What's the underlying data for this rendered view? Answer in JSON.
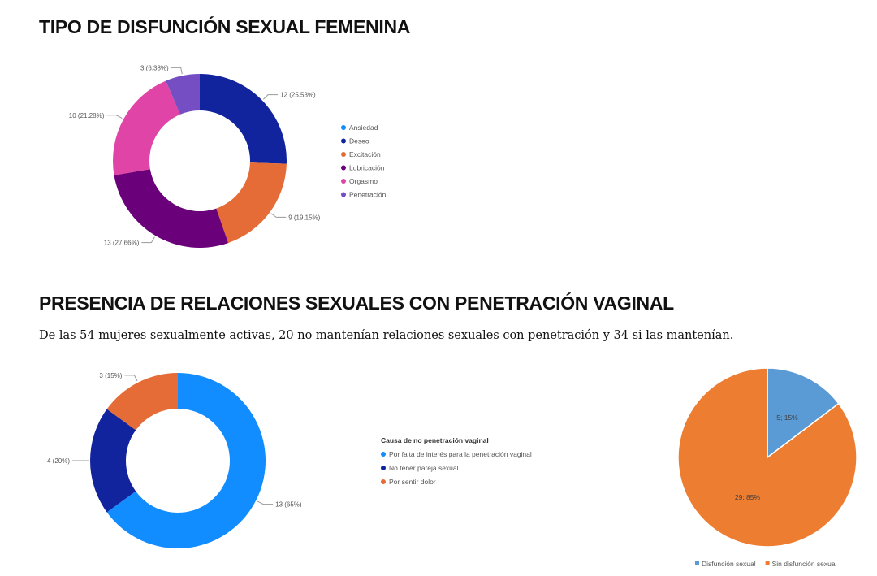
{
  "section1": {
    "title": "TIPO DE DISFUNCIÓN SEXUAL FEMENINA"
  },
  "section2": {
    "title": "PRESENCIA DE RELACIONES SEXUALES CON PENETRACIÓN VAGINAL",
    "paragraph": "De las 54 mujeres sexualmente activas, 20 no mantenían relaciones sexuales con penetración y 34 si las mantenían."
  },
  "colors": {
    "ansiedad": "#118dff",
    "deseo": "#12239e",
    "excitacion": "#e66c37",
    "lubricacion": "#6b007b",
    "orgasmo": "#e044a7",
    "penetracion": "#744ec2",
    "pie_blue": "#5b9bd5",
    "pie_orange": "#ed7d31"
  },
  "chart_data": [
    {
      "type": "pie",
      "style": "donut",
      "legend_title": "",
      "legend_position": "right",
      "categories": [
        "Ansiedad",
        "Deseo",
        "Excitación",
        "Lubricación",
        "Orgasmo",
        "Penetración"
      ],
      "values": [
        0,
        12,
        9,
        13,
        10,
        3
      ],
      "data_labels": [
        "",
        "12 (25.53%)",
        "9 (19.15%)",
        "13 (27.66%)",
        "10 (21.28%)",
        "3 (6.38%)"
      ],
      "colors": [
        "#118dff",
        "#12239e",
        "#e66c37",
        "#6b007b",
        "#e044a7",
        "#744ec2"
      ]
    },
    {
      "type": "pie",
      "style": "donut",
      "legend_title": "Causa de no penetración vaginal",
      "legend_position": "right",
      "categories": [
        "Por falta de interés para la penetración vaginal",
        "No tener pareja sexual",
        "Por sentir dolor"
      ],
      "values": [
        13,
        4,
        3
      ],
      "data_labels": [
        "13 (65%)",
        "4 (20%)",
        "3 (15%)"
      ],
      "colors": [
        "#118dff",
        "#12239e",
        "#e66c37"
      ]
    },
    {
      "type": "pie",
      "style": "pie",
      "legend_title": "",
      "legend_position": "bottom",
      "categories": [
        "Disfunción sexual",
        "Sin disfunción sexual"
      ],
      "values": [
        5,
        29
      ],
      "data_labels": [
        "5; 15%",
        "29; 85%"
      ],
      "colors": [
        "#5b9bd5",
        "#ed7d31"
      ]
    }
  ]
}
